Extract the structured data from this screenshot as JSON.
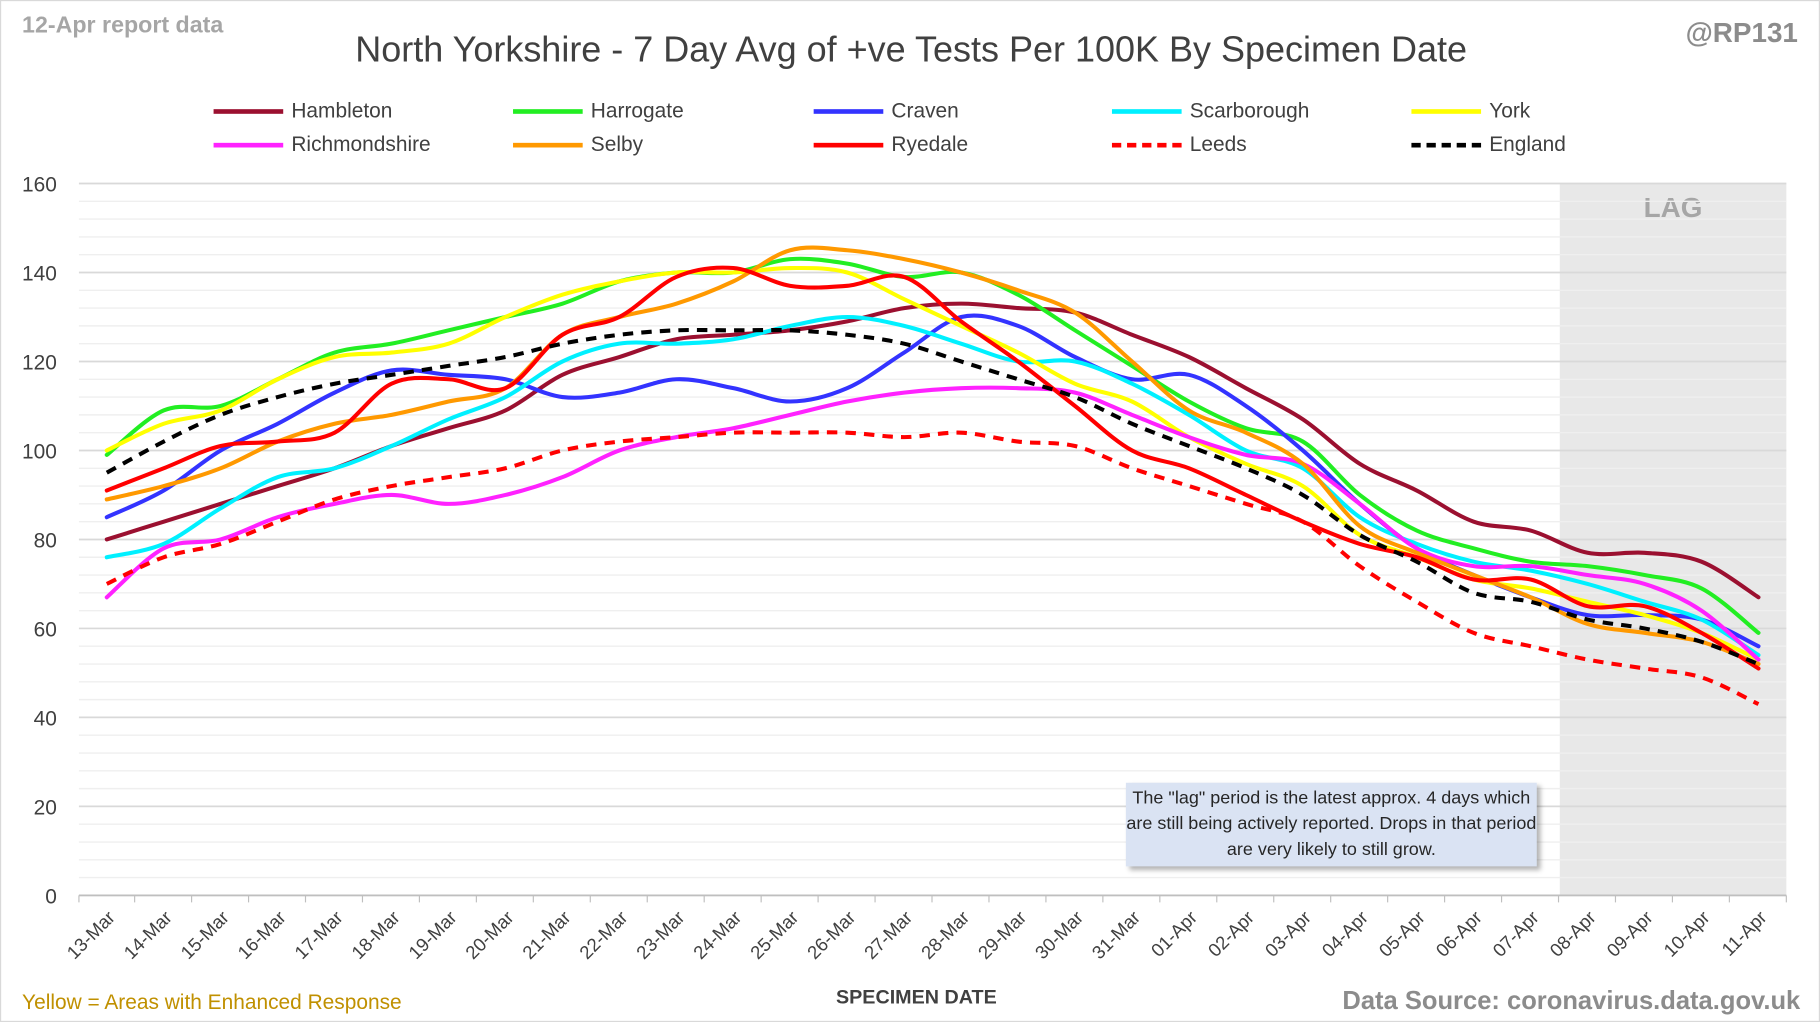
{
  "header": {
    "report_date": "12-Apr report data",
    "handle": "@RP131"
  },
  "footer": {
    "enhanced_note": "Yellow = Areas with Enhanced Response",
    "source": "Data Source: coronavirus.data.gov.uk"
  },
  "annotation": "The \"lag\" period is the latest approx. 4 days which are still being actively reported.  Drops in that period are very likely to still grow.",
  "chart_data": {
    "type": "line",
    "title": "North Yorkshire - 7 Day Avg of +ve Tests Per 100K By Specimen Date",
    "xlabel": "SPECIMEN DATE",
    "ylabel": "",
    "ylim": [
      0,
      160
    ],
    "yticks": [
      0,
      20,
      40,
      60,
      80,
      100,
      120,
      140,
      160
    ],
    "grid": true,
    "legend_placement": "top",
    "lag_label": "LAG",
    "lag_start": "08-Apr",
    "categories": [
      "13-Mar",
      "14-Mar",
      "15-Mar",
      "16-Mar",
      "17-Mar",
      "18-Mar",
      "19-Mar",
      "20-Mar",
      "21-Mar",
      "22-Mar",
      "23-Mar",
      "24-Mar",
      "25-Mar",
      "26-Mar",
      "27-Mar",
      "28-Mar",
      "29-Mar",
      "30-Mar",
      "31-Mar",
      "01-Apr",
      "02-Apr",
      "03-Apr",
      "04-Apr",
      "05-Apr",
      "06-Apr",
      "07-Apr",
      "08-Apr",
      "09-Apr",
      "10-Apr",
      "11-Apr"
    ],
    "series": [
      {
        "name": "Hambleton",
        "color": "#9b1030",
        "dashed": false,
        "values": [
          80,
          84,
          88,
          92,
          96,
          101,
          105,
          109,
          117,
          121,
          125,
          126,
          127,
          129,
          132,
          133,
          132,
          131,
          126,
          121,
          114,
          107,
          97,
          91,
          84,
          82,
          77,
          77,
          75,
          67
        ]
      },
      {
        "name": "Harrogate",
        "color": "#22ee22",
        "dashed": false,
        "values": [
          99,
          109,
          110,
          116,
          122,
          124,
          127,
          130,
          133,
          138,
          140,
          140,
          143,
          142,
          139,
          140,
          135,
          127,
          119,
          111,
          105,
          102,
          90,
          82,
          78,
          75,
          74,
          72,
          69,
          59
        ]
      },
      {
        "name": "Craven",
        "color": "#3333ff",
        "dashed": false,
        "values": [
          85,
          91,
          100,
          106,
          113,
          118,
          117,
          116,
          112,
          113,
          116,
          114,
          111,
          114,
          122,
          130,
          128,
          121,
          116,
          117,
          110,
          100,
          88,
          78,
          72,
          67,
          63,
          63,
          62,
          56
        ]
      },
      {
        "name": "Scarborough",
        "color": "#00f0ff",
        "dashed": false,
        "values": [
          76,
          79,
          87,
          94,
          96,
          101,
          107,
          112,
          120,
          124,
          124,
          125,
          128,
          130,
          128,
          124,
          120,
          120,
          115,
          108,
          100,
          96,
          85,
          79,
          75,
          73,
          70,
          66,
          62,
          54
        ]
      },
      {
        "name": "York",
        "color": "#ffff00",
        "dashed": false,
        "values": [
          100,
          106,
          109,
          116,
          121,
          122,
          124,
          130,
          135,
          138,
          140,
          140,
          141,
          140,
          134,
          128,
          122,
          115,
          111,
          103,
          97,
          92,
          81,
          76,
          71,
          69,
          66,
          63,
          59,
          53
        ]
      },
      {
        "name": "Richmondshire",
        "color": "#ff22ff",
        "dashed": false,
        "values": [
          67,
          78,
          80,
          85,
          88,
          90,
          88,
          90,
          94,
          100,
          103,
          105,
          108,
          111,
          113,
          114,
          114,
          113,
          108,
          103,
          99,
          97,
          88,
          78,
          74,
          74,
          72,
          70,
          64,
          53
        ]
      },
      {
        "name": "Selby",
        "color": "#ff9900",
        "dashed": false,
        "values": [
          89,
          92,
          96,
          102,
          106,
          108,
          111,
          114,
          126,
          130,
          133,
          138,
          145,
          145,
          143,
          140,
          136,
          131,
          120,
          109,
          104,
          97,
          83,
          77,
          72,
          67,
          61,
          59,
          57,
          52
        ]
      },
      {
        "name": "Ryedale",
        "color": "#ff0000",
        "dashed": false,
        "values": [
          91,
          96,
          101,
          102,
          104,
          115,
          116,
          114,
          126,
          130,
          139,
          141,
          137,
          137,
          139,
          129,
          120,
          110,
          100,
          96,
          90,
          84,
          79,
          76,
          71,
          71,
          65,
          65,
          59,
          51
        ]
      },
      {
        "name": "Leeds",
        "color": "#ff0000",
        "dashed": true,
        "values": [
          70,
          76,
          79,
          84,
          89,
          92,
          94,
          96,
          100,
          102,
          103,
          104,
          104,
          104,
          103,
          104,
          102,
          101,
          96,
          92,
          88,
          84,
          74,
          66,
          59,
          56,
          53,
          51,
          49,
          43
        ]
      },
      {
        "name": "England",
        "color": "#000000",
        "dashed": true,
        "values": [
          95,
          102,
          108,
          112,
          115,
          117,
          119,
          121,
          124,
          126,
          127,
          127,
          127,
          126,
          124,
          120,
          116,
          112,
          106,
          101,
          96,
          90,
          81,
          75,
          68,
          66,
          62,
          60,
          57,
          52
        ]
      }
    ]
  }
}
